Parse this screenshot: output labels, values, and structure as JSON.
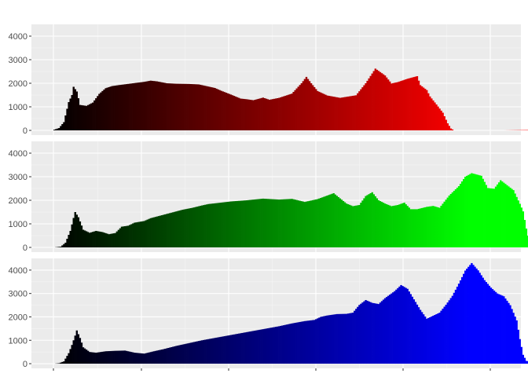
{
  "chart_data": [
    {
      "type": "histogram",
      "channel": "red",
      "fill_gradient": [
        "#000000",
        "#ff0000"
      ],
      "bins": 256,
      "ylim": [
        -200,
        4500
      ],
      "yticks": [
        0,
        1000,
        2000,
        3000,
        4000
      ],
      "ytick_labels": [
        "0",
        "1000",
        "2000",
        "3000",
        "4000"
      ],
      "grid": true,
      "shape_points": [
        [
          0,
          30
        ],
        [
          3,
          100
        ],
        [
          6,
          350
        ],
        [
          9,
          1200
        ],
        [
          11,
          1500
        ],
        [
          12,
          1850
        ],
        [
          14,
          1650
        ],
        [
          16,
          1080
        ],
        [
          20,
          1040
        ],
        [
          24,
          1180
        ],
        [
          28,
          1550
        ],
        [
          32,
          1790
        ],
        [
          36,
          1880
        ],
        [
          40,
          1920
        ],
        [
          48,
          1990
        ],
        [
          56,
          2060
        ],
        [
          60,
          2110
        ],
        [
          64,
          2080
        ],
        [
          70,
          2000
        ],
        [
          76,
          1980
        ],
        [
          84,
          1970
        ],
        [
          90,
          1950
        ],
        [
          100,
          1800
        ],
        [
          104,
          1680
        ],
        [
          110,
          1520
        ],
        [
          116,
          1350
        ],
        [
          120,
          1320
        ],
        [
          124,
          1280
        ],
        [
          130,
          1390
        ],
        [
          134,
          1300
        ],
        [
          140,
          1380
        ],
        [
          148,
          1560
        ],
        [
          154,
          2000
        ],
        [
          157,
          2270
        ],
        [
          160,
          2000
        ],
        [
          164,
          1670
        ],
        [
          170,
          1480
        ],
        [
          178,
          1380
        ],
        [
          188,
          1490
        ],
        [
          194,
          2000
        ],
        [
          200,
          2620
        ],
        [
          206,
          2330
        ],
        [
          210,
          1990
        ],
        [
          214,
          2050
        ],
        [
          220,
          2190
        ],
        [
          226,
          2300
        ],
        [
          228,
          1920
        ],
        [
          232,
          1710
        ],
        [
          234,
          1440
        ],
        [
          238,
          1100
        ],
        [
          242,
          750
        ],
        [
          245,
          300
        ],
        [
          247,
          80
        ],
        [
          249,
          0
        ],
        [
          280,
          0
        ],
        [
          300,
          20
        ]
      ]
    },
    {
      "type": "histogram",
      "channel": "green",
      "fill_gradient": [
        "#000000",
        "#00ff00"
      ],
      "bins": 256,
      "ylim": [
        -200,
        4500
      ],
      "yticks": [
        0,
        1000,
        2000,
        3000,
        4000
      ],
      "ytick_labels": [
        "0",
        "1000",
        "2000",
        "3000",
        "4000"
      ],
      "grid": true,
      "shape_points": [
        [
          0,
          0
        ],
        [
          4,
          30
        ],
        [
          7,
          200
        ],
        [
          10,
          700
        ],
        [
          12,
          1250
        ],
        [
          13,
          1500
        ],
        [
          15,
          1280
        ],
        [
          18,
          750
        ],
        [
          22,
          620
        ],
        [
          26,
          700
        ],
        [
          30,
          650
        ],
        [
          34,
          560
        ],
        [
          38,
          610
        ],
        [
          42,
          880
        ],
        [
          46,
          920
        ],
        [
          50,
          1050
        ],
        [
          56,
          1120
        ],
        [
          60,
          1240
        ],
        [
          70,
          1420
        ],
        [
          80,
          1600
        ],
        [
          86,
          1680
        ],
        [
          92,
          1780
        ],
        [
          96,
          1840
        ],
        [
          100,
          1870
        ],
        [
          110,
          1950
        ],
        [
          120,
          2000
        ],
        [
          130,
          2070
        ],
        [
          140,
          2030
        ],
        [
          148,
          2060
        ],
        [
          156,
          1930
        ],
        [
          164,
          2050
        ],
        [
          174,
          2300
        ],
        [
          178,
          2080
        ],
        [
          182,
          1860
        ],
        [
          186,
          1750
        ],
        [
          190,
          1800
        ],
        [
          194,
          2180
        ],
        [
          198,
          2340
        ],
        [
          202,
          2000
        ],
        [
          206,
          1860
        ],
        [
          210,
          1750
        ],
        [
          214,
          1800
        ],
        [
          218,
          1900
        ],
        [
          222,
          1620
        ],
        [
          226,
          1620
        ],
        [
          232,
          1720
        ],
        [
          236,
          1760
        ],
        [
          240,
          1680
        ],
        [
          246,
          2200
        ],
        [
          252,
          2600
        ],
        [
          256,
          3000
        ],
        [
          260,
          3150
        ],
        [
          266,
          3040
        ],
        [
          270,
          2520
        ],
        [
          274,
          2490
        ],
        [
          278,
          2850
        ],
        [
          282,
          2640
        ],
        [
          286,
          2430
        ],
        [
          290,
          1850
        ],
        [
          292,
          1530
        ],
        [
          294,
          800
        ],
        [
          296,
          200
        ],
        [
          300,
          50
        ],
        [
          304,
          0
        ]
      ]
    },
    {
      "type": "histogram",
      "channel": "blue",
      "fill_gradient": [
        "#000000",
        "#0000ff"
      ],
      "bins": 256,
      "ylim": [
        -200,
        4500
      ],
      "yticks": [
        0,
        1000,
        2000,
        3000,
        4000
      ],
      "ytick_labels": [
        "0",
        "1000",
        "2000",
        "3000",
        "4000"
      ],
      "grid": true,
      "shape_points": [
        [
          0,
          0
        ],
        [
          3,
          20
        ],
        [
          6,
          100
        ],
        [
          9,
          450
        ],
        [
          11,
          800
        ],
        [
          13,
          1200
        ],
        [
          14,
          1420
        ],
        [
          16,
          1100
        ],
        [
          18,
          700
        ],
        [
          22,
          500
        ],
        [
          26,
          470
        ],
        [
          32,
          530
        ],
        [
          38,
          550
        ],
        [
          44,
          560
        ],
        [
          50,
          470
        ],
        [
          56,
          430
        ],
        [
          62,
          530
        ],
        [
          68,
          620
        ],
        [
          76,
          760
        ],
        [
          84,
          880
        ],
        [
          92,
          1000
        ],
        [
          100,
          1100
        ],
        [
          108,
          1200
        ],
        [
          116,
          1300
        ],
        [
          124,
          1400
        ],
        [
          132,
          1500
        ],
        [
          140,
          1600
        ],
        [
          148,
          1720
        ],
        [
          156,
          1820
        ],
        [
          162,
          1870
        ],
        [
          166,
          2000
        ],
        [
          170,
          2060
        ],
        [
          176,
          2120
        ],
        [
          182,
          2130
        ],
        [
          186,
          2180
        ],
        [
          190,
          2510
        ],
        [
          194,
          2720
        ],
        [
          198,
          2600
        ],
        [
          202,
          2550
        ],
        [
          206,
          2800
        ],
        [
          212,
          3100
        ],
        [
          216,
          3360
        ],
        [
          220,
          3200
        ],
        [
          224,
          2750
        ],
        [
          228,
          2300
        ],
        [
          232,
          1920
        ],
        [
          236,
          2050
        ],
        [
          240,
          2180
        ],
        [
          244,
          2520
        ],
        [
          248,
          2900
        ],
        [
          252,
          3420
        ],
        [
          256,
          3980
        ],
        [
          260,
          4300
        ],
        [
          264,
          3990
        ],
        [
          268,
          3570
        ],
        [
          272,
          3250
        ],
        [
          276,
          3000
        ],
        [
          280,
          2880
        ],
        [
          284,
          2500
        ],
        [
          288,
          1850
        ],
        [
          290,
          1050
        ],
        [
          292,
          380
        ],
        [
          294,
          120
        ],
        [
          296,
          100
        ],
        [
          300,
          80
        ],
        [
          310,
          50
        ],
        [
          320,
          40
        ],
        [
          330,
          40
        ],
        [
          336,
          20
        ],
        [
          340,
          0
        ]
      ]
    }
  ]
}
